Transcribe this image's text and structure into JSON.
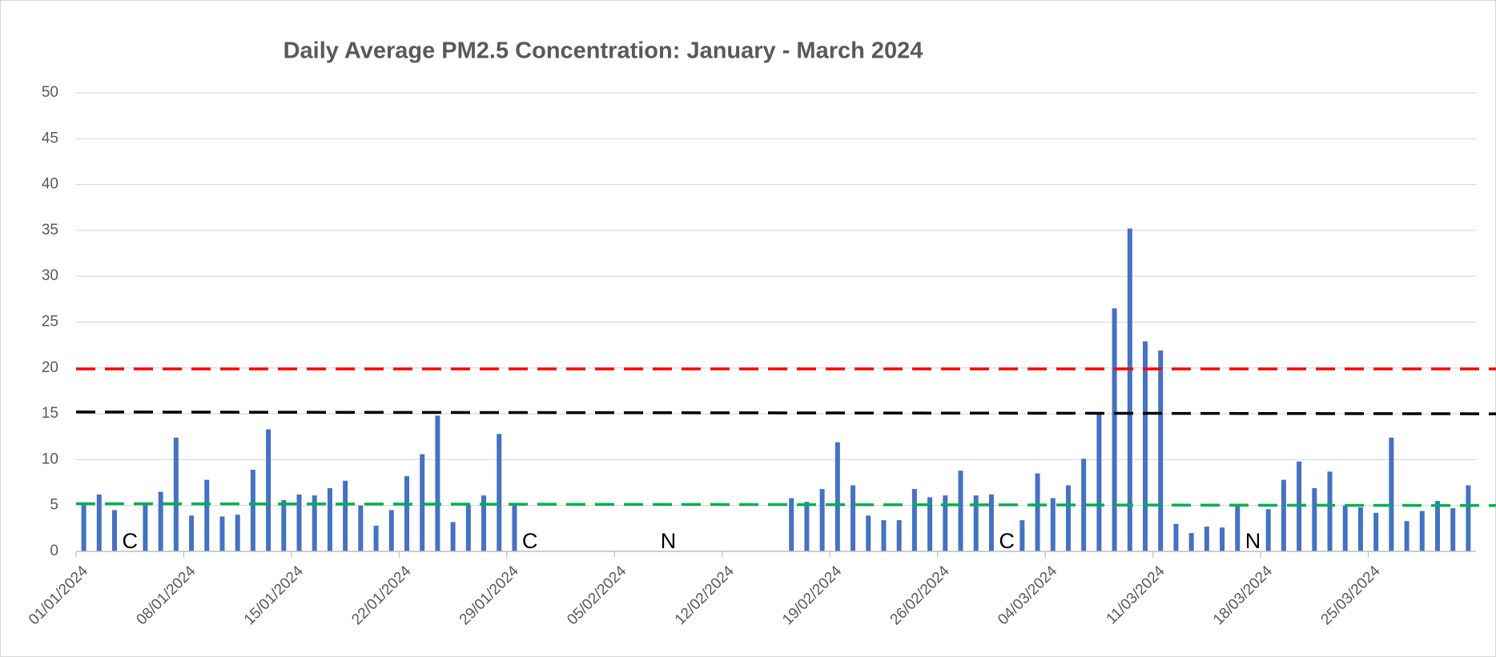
{
  "chart_data": {
    "type": "bar",
    "title": "Daily Average PM2.5 Concentration: January - March 2024",
    "categories": [
      "01/01/2024",
      null,
      null,
      null,
      null,
      null,
      null,
      "08/01/2024",
      null,
      null,
      null,
      null,
      null,
      null,
      "15/01/2024",
      null,
      null,
      null,
      null,
      null,
      null,
      "22/01/2024",
      null,
      null,
      null,
      null,
      null,
      null,
      "29/01/2024",
      null,
      null,
      null,
      null,
      null,
      null,
      "05/02/2024",
      null,
      null,
      null,
      null,
      null,
      null,
      "12/02/2024",
      null,
      null,
      null,
      null,
      null,
      null,
      "19/02/2024",
      null,
      null,
      null,
      null,
      null,
      null,
      "26/02/2024",
      null,
      null,
      null,
      null,
      null,
      null,
      "04/03/2024",
      null,
      null,
      null,
      null,
      null,
      null,
      "11/03/2024",
      null,
      null,
      null,
      null,
      null,
      null,
      "18/03/2024",
      null,
      null,
      null,
      null,
      null,
      null,
      "25/03/2024",
      null,
      null,
      null,
      null,
      null,
      null
    ],
    "values": [
      5.2,
      6.2,
      4.5,
      null,
      5.2,
      6.5,
      12.4,
      3.9,
      7.8,
      3.8,
      4.0,
      8.9,
      13.3,
      5.6,
      6.2,
      6.1,
      6.9,
      7.7,
      5.0,
      2.8,
      4.5,
      8.2,
      10.6,
      14.8,
      3.2,
      5.1,
      6.1,
      12.8,
      5.2,
      null,
      null,
      null,
      null,
      null,
      null,
      null,
      null,
      null,
      null,
      null,
      null,
      null,
      null,
      null,
      null,
      null,
      5.8,
      5.4,
      6.8,
      11.9,
      7.2,
      3.9,
      3.4,
      3.4,
      6.8,
      5.9,
      6.1,
      8.8,
      6.1,
      6.2,
      null,
      3.4,
      8.5,
      5.8,
      7.2,
      10.1,
      15.0,
      26.5,
      35.2,
      22.9,
      21.9,
      3.0,
      2.0,
      2.7,
      2.6,
      4.9,
      null,
      4.6,
      7.8,
      9.8,
      6.9,
      8.7,
      5.0,
      4.8,
      4.2,
      12.4,
      3.3,
      4.4,
      5.5,
      4.7,
      7.2
    ],
    "category_notes": [
      null,
      null,
      null,
      "C",
      null,
      null,
      null,
      null,
      null,
      null,
      null,
      null,
      null,
      null,
      null,
      null,
      null,
      null,
      null,
      null,
      null,
      null,
      null,
      null,
      null,
      null,
      null,
      null,
      null,
      "C",
      null,
      null,
      null,
      null,
      null,
      null,
      null,
      null,
      "N",
      null,
      null,
      null,
      null,
      null,
      null,
      null,
      null,
      null,
      null,
      null,
      null,
      null,
      null,
      null,
      null,
      null,
      null,
      null,
      null,
      null,
      "C",
      null,
      null,
      null,
      null,
      null,
      null,
      null,
      null,
      null,
      null,
      null,
      null,
      null,
      null,
      null,
      "N",
      null,
      null,
      null,
      null,
      null,
      null,
      null,
      null,
      null,
      null,
      null,
      null,
      null,
      null
    ],
    "color": "#4472c4",
    "reference_lines": [
      {
        "color": "#ff0000",
        "values": [
          19.9,
          19.9
        ]
      },
      {
        "color": "#000000",
        "values": [
          15.2,
          15.0
        ]
      },
      {
        "color": "#00b050",
        "values": [
          5.2,
          5.0
        ]
      }
    ],
    "ylim": [
      0,
      50
    ],
    "yticks": [
      0,
      5,
      10,
      15,
      20,
      25,
      30,
      35,
      40,
      45,
      50
    ],
    "grid": true
  }
}
